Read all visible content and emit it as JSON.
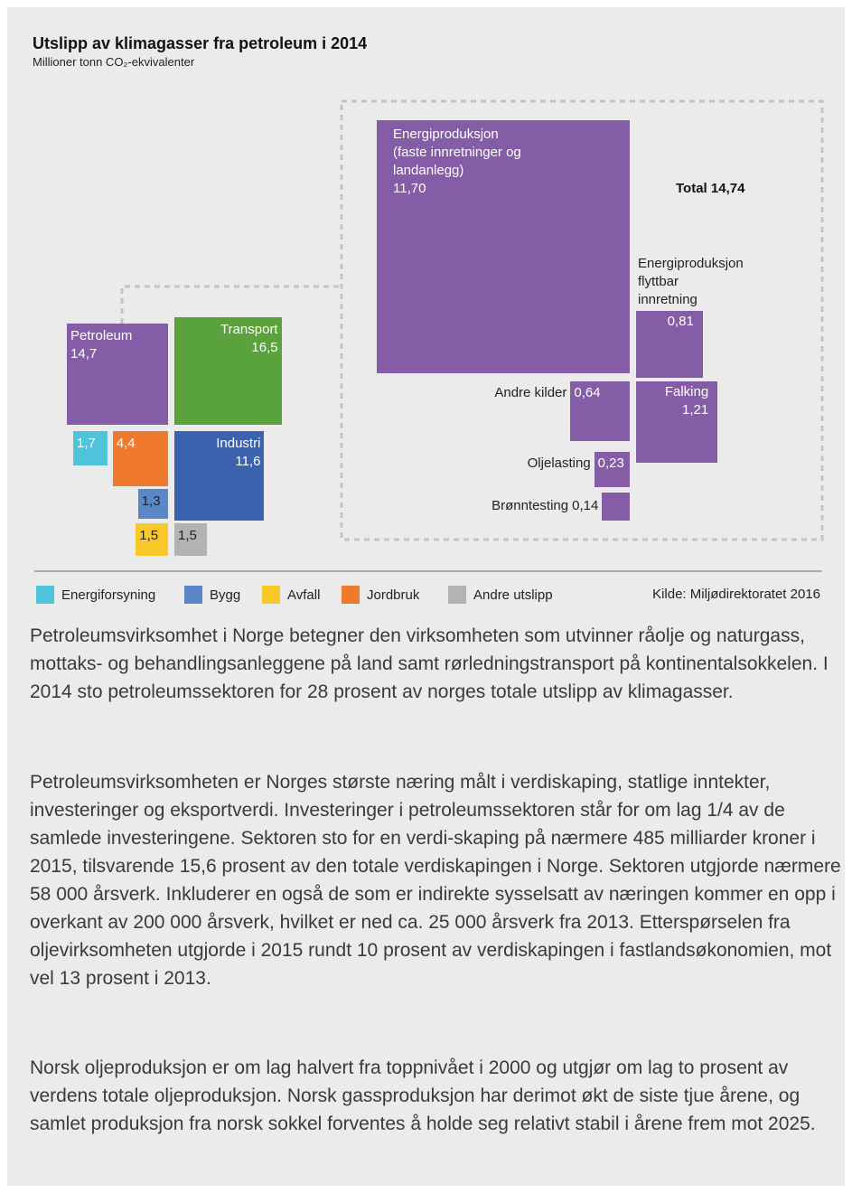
{
  "chart_data": {
    "type": "proportional-square",
    "title": "Utslipp av klimagasser fra petroleum i 2014",
    "subtitle": "Millioner tonn CO₂-ekvivalenter",
    "overview": {
      "categories": [
        "Petroleum",
        "Transport",
        "Industri",
        "Energiforsyning",
        "Jordbruk",
        "Bygg",
        "Avfall",
        "Andre utslipp"
      ],
      "values": [
        14.7,
        16.5,
        11.6,
        1.7,
        4.4,
        1.3,
        1.5,
        1.5
      ],
      "value_labels": [
        "14,7",
        "16,5",
        "11,6",
        "1,7",
        "4,4",
        "1,3",
        "1,5",
        "1,5"
      ],
      "colors": [
        "#855ca6",
        "#5aa33c",
        "#3b63ad",
        "#4fc3d9",
        "#ef7a2e",
        "#5b87c9",
        "#f9c82b",
        "#b3b3b3"
      ]
    },
    "detail": {
      "categories": [
        "Energiproduksjon\n(faste innretninger og\nlandanlegg)",
        "Energiproduksjon\nflyttbar\ninnretning",
        "Andre kilder",
        "Falking",
        "Oljelasting",
        "Brønntesting"
      ],
      "values": [
        11.7,
        0.81,
        0.64,
        1.21,
        0.23,
        0.14
      ],
      "value_labels": [
        "11,70",
        "0,81",
        "0,64",
        "1,21",
        "0,23",
        "0,14"
      ],
      "color": "#855ca6",
      "total_label": "Total 14,74"
    },
    "source": "Kilde: Miljødirektoratet 2016"
  },
  "paragraphs": [
    "Petroleumsvirksomhet i Norge betegner den virksomheten som utvinner råolje og naturgass, mottaks- og behandlingsanleggene på land samt rørledningstransport på kontinentalsokkelen. I 2014 sto petroleumssektoren for 28 prosent av norges totale utslipp av klimagasser.",
    "Petroleumsvirksomheten er Norges største næring målt i verdiskaping, statlige inntekter, investeringer og eksportverdi. Investeringer i petroleumssektoren står for om lag 1/4 av de samlede investeringene. Sektoren sto for en verdi-skaping på nærmere 485 milliarder kroner i 2015, tilsvarende 15,6 prosent av den totale verdiskapingen i Norge. Sektoren utgjorde nærmere 58 000 årsverk. Inkluderer en også de som er indirekte sysselsatt av næringen kommer en opp i overkant av 200 000 årsverk, hvilket er ned ca. 25 000 årsverk fra 2013. Etterspørselen fra oljevirksomheten utgjorde i 2015 rundt 10 prosent av verdiskapingen i fastlandsøkonomien, mot vel 13 prosent i 2013.",
    "Norsk oljeproduksjon er om lag halvert fra toppnivået i 2000 og utgjør om lag to prosent av verdens totale oljeproduksjon. Norsk gassproduksjon har derimot økt de siste tjue årene, og samlet produksjon fra norsk sokkel forventes å holde seg relativt stabil i årene frem mot 2025."
  ]
}
